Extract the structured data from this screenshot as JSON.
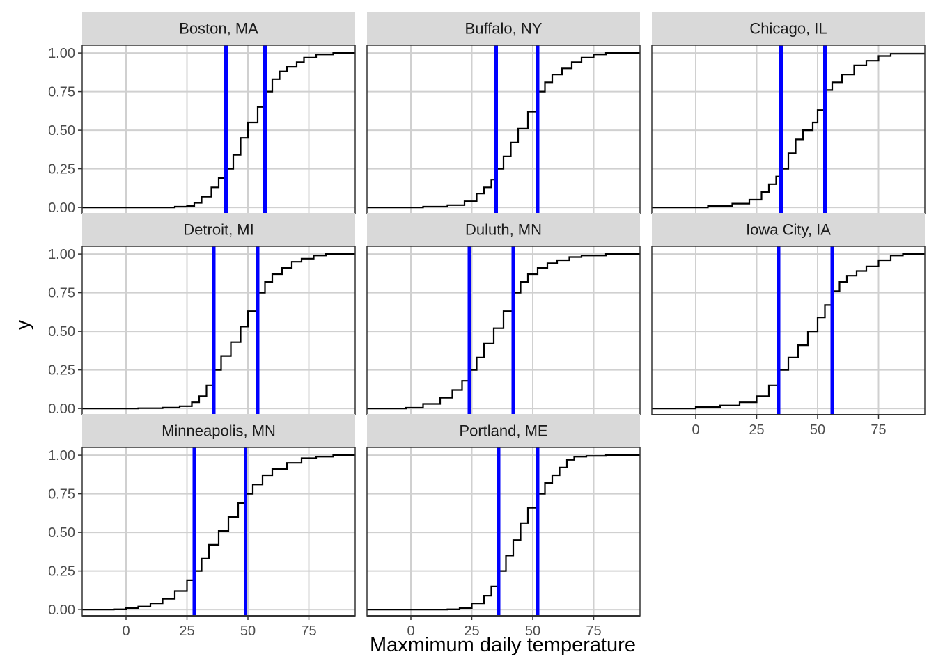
{
  "chart_data": {
    "type": "line",
    "subtype": "ecdf-facet",
    "xlabel": "Maxmimum daily temperature",
    "ylabel": "y",
    "xlim": [
      -18,
      94
    ],
    "ylim": [
      -0.04,
      1.05
    ],
    "x_ticks": [
      0,
      25,
      50,
      75
    ],
    "x_tick_labels": [
      "0",
      "25",
      "50",
      "75"
    ],
    "y_ticks": [
      0,
      0.25,
      0.5,
      0.75,
      1.0
    ],
    "y_tick_labels": [
      "0.00",
      "0.25",
      "0.50",
      "0.75",
      "1.00"
    ],
    "grid": true,
    "quartile_line_color": "#0000ff",
    "curve_color": "#000000",
    "strip_color": "#d9d9d9",
    "panels": [
      {
        "title": "Boston, MA",
        "q1": 41,
        "q3": 57,
        "x": [
          -18,
          20,
          25,
          28,
          31,
          35,
          38,
          41,
          44,
          47,
          50,
          54,
          57,
          60,
          63,
          66,
          70,
          73,
          78,
          85,
          94
        ],
        "y": [
          0,
          0.005,
          0.01,
          0.03,
          0.07,
          0.13,
          0.19,
          0.25,
          0.34,
          0.45,
          0.55,
          0.65,
          0.75,
          0.83,
          0.88,
          0.91,
          0.94,
          0.97,
          0.99,
          1.0,
          1.0
        ]
      },
      {
        "title": "Buffalo, NY",
        "q1": 35,
        "q3": 52,
        "x": [
          -18,
          5,
          15,
          22,
          27,
          30,
          33,
          35,
          38,
          41,
          44,
          48,
          52,
          55,
          58,
          62,
          66,
          70,
          75,
          80,
          94
        ],
        "y": [
          0,
          0.005,
          0.015,
          0.04,
          0.09,
          0.13,
          0.18,
          0.25,
          0.33,
          0.42,
          0.51,
          0.62,
          0.75,
          0.81,
          0.86,
          0.9,
          0.94,
          0.97,
          0.99,
          1.0,
          1.0
        ]
      },
      {
        "title": "Chicago, IL",
        "q1": 35,
        "q3": 53,
        "x": [
          -18,
          5,
          15,
          22,
          27,
          30,
          33,
          35,
          38,
          41,
          44,
          48,
          50,
          53,
          56,
          60,
          65,
          70,
          75,
          80,
          94
        ],
        "y": [
          0,
          0.01,
          0.025,
          0.05,
          0.1,
          0.15,
          0.2,
          0.25,
          0.35,
          0.44,
          0.5,
          0.55,
          0.63,
          0.76,
          0.81,
          0.86,
          0.92,
          0.95,
          0.98,
          0.995,
          1.0
        ]
      },
      {
        "title": "Detroit, MI",
        "q1": 36,
        "q3": 54,
        "x": [
          -18,
          5,
          15,
          22,
          27,
          30,
          33,
          36,
          39,
          43,
          47,
          50,
          54,
          57,
          60,
          64,
          68,
          72,
          77,
          82,
          94
        ],
        "y": [
          0,
          0.002,
          0.006,
          0.015,
          0.04,
          0.08,
          0.15,
          0.25,
          0.34,
          0.43,
          0.53,
          0.63,
          0.75,
          0.82,
          0.87,
          0.91,
          0.95,
          0.97,
          0.99,
          1.0,
          1.0
        ]
      },
      {
        "title": "Duluth, MN",
        "q1": 24,
        "q3": 42,
        "x": [
          -18,
          -2,
          5,
          12,
          17,
          21,
          24,
          27,
          30,
          34,
          38,
          42,
          45,
          48,
          52,
          56,
          60,
          65,
          70,
          80,
          94
        ],
        "y": [
          0,
          0.005,
          0.03,
          0.07,
          0.12,
          0.18,
          0.25,
          0.33,
          0.42,
          0.52,
          0.63,
          0.75,
          0.82,
          0.87,
          0.91,
          0.94,
          0.96,
          0.98,
          0.99,
          1.0,
          1.0
        ]
      },
      {
        "title": "Iowa City, IA",
        "q1": 34,
        "q3": 56,
        "x": [
          -18,
          0,
          10,
          18,
          25,
          30,
          34,
          38,
          42,
          46,
          50,
          53,
          56,
          59,
          62,
          66,
          70,
          75,
          80,
          85,
          94
        ],
        "y": [
          0,
          0.01,
          0.02,
          0.04,
          0.08,
          0.15,
          0.25,
          0.33,
          0.41,
          0.5,
          0.59,
          0.67,
          0.76,
          0.82,
          0.86,
          0.89,
          0.92,
          0.96,
          0.99,
          1.0,
          1.0
        ]
      },
      {
        "title": "Minneapolis, MN",
        "q1": 28,
        "q3": 49,
        "x": [
          -18,
          -5,
          0,
          5,
          10,
          15,
          20,
          25,
          28,
          31,
          34,
          38,
          42,
          46,
          49,
          52,
          56,
          60,
          66,
          72,
          78,
          85,
          94
        ],
        "y": [
          0,
          0.002,
          0.01,
          0.02,
          0.04,
          0.07,
          0.12,
          0.19,
          0.25,
          0.33,
          0.42,
          0.51,
          0.6,
          0.69,
          0.75,
          0.81,
          0.87,
          0.91,
          0.95,
          0.98,
          0.99,
          1.0,
          1.0
        ]
      },
      {
        "title": "Portland, ME",
        "q1": 36,
        "q3": 52,
        "x": [
          -18,
          15,
          20,
          25,
          30,
          33,
          36,
          39,
          42,
          45,
          48,
          52,
          55,
          58,
          61,
          64,
          67,
          72,
          80,
          94
        ],
        "y": [
          0,
          0.002,
          0.01,
          0.04,
          0.09,
          0.15,
          0.25,
          0.35,
          0.45,
          0.56,
          0.66,
          0.75,
          0.82,
          0.87,
          0.92,
          0.97,
          0.99,
          0.995,
          1.0,
          1.0
        ]
      }
    ]
  }
}
